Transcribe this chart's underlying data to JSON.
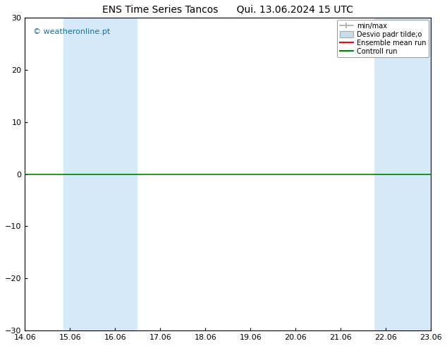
{
  "title": "ENS Time Series Tancos      Qui. 13.06.2024 15 UTC",
  "ylim": [
    -30,
    30
  ],
  "xlim": [
    0,
    9
  ],
  "yticks": [
    -30,
    -20,
    -10,
    0,
    10,
    20,
    30
  ],
  "xtick_labels": [
    "14.06",
    "15.06",
    "16.06",
    "17.06",
    "18.06",
    "19.06",
    "20.06",
    "21.06",
    "22.06",
    "23.06"
  ],
  "xtick_positions": [
    0,
    1,
    2,
    3,
    4,
    5,
    6,
    7,
    8,
    9
  ],
  "shaded_bands": [
    [
      0.85,
      1.5
    ],
    [
      1.5,
      2.5
    ],
    [
      7.75,
      8.5
    ],
    [
      8.5,
      9.0
    ]
  ],
  "shade_color": "#d6e9f8",
  "hline_y": 0,
  "hline_color": "#008000",
  "watermark": "© weatheronline.pt",
  "watermark_color": "#1a6ea0",
  "legend_entries": [
    "min/max",
    "Desvio padr tilde;o",
    "Ensemble mean run",
    "Controll run"
  ],
  "legend_line_colors": [
    "#aaaaaa",
    "#aaaaaa",
    "#ff0000",
    "#008000"
  ],
  "background_color": "#ffffff",
  "plot_bg_color": "#ffffff",
  "title_fontsize": 10,
  "tick_fontsize": 8,
  "watermark_fontsize": 8
}
